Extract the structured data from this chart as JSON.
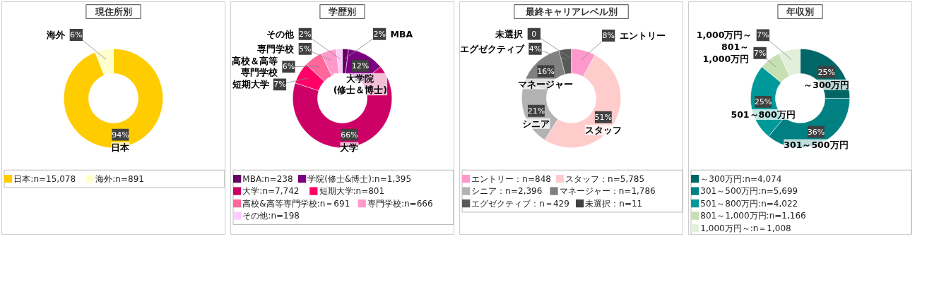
{
  "chart_data": [
    {
      "type": "donut",
      "title": "現住所別",
      "categories": [
        "日本:n=15,078",
        "海外:n=891"
      ],
      "values": [
        94,
        6
      ],
      "colors": [
        "#ffcc00",
        "#ffffcc"
      ],
      "value_labels": [
        "94%",
        "6%"
      ],
      "annotations": [
        "日本",
        "海外"
      ],
      "legend": "bottom"
    },
    {
      "type": "donut",
      "title": "学歴別",
      "categories": [
        "MBA:n=238",
        "学院(修士&博士):n=1,395",
        "大学:n=7,742",
        "短期大学:n=801",
        "高校&高等専門学校:n＝691",
        "専門学校:n=666",
        "その他:n=198"
      ],
      "values": [
        2,
        12,
        66,
        7,
        6,
        5,
        2
      ],
      "colors": [
        "#660066",
        "#7a0080",
        "#cc0066",
        "#ff0066",
        "#ff6699",
        "#ff99cc",
        "#ffccff"
      ],
      "value_labels": [
        "2%",
        "12%",
        "66%",
        "7%",
        "6%",
        "5%",
        "2%"
      ],
      "annotations": [
        "MBA",
        "大学院(修士＆博士)",
        "大学",
        "短期大学",
        "高校＆高等専門学校",
        "専門学校",
        "その他"
      ],
      "legend": "bottom"
    },
    {
      "type": "donut",
      "title": "最終キャリアレベル別",
      "categories": [
        "エントリー：n=848",
        "スタッフ：n=5,785",
        "シニア：n=2,396",
        "マネージャー：n=1,786",
        "エグゼクティブ：n＝429",
        "未選択：n=11"
      ],
      "values": [
        8,
        51,
        21,
        16,
        4,
        0
      ],
      "colors": [
        "#ff99cc",
        "#ffcccc",
        "#b3b3b3",
        "#808080",
        "#595959",
        "#404040"
      ],
      "value_labels": [
        "8%",
        "51%",
        "21%",
        "16%",
        "4%",
        "0"
      ],
      "annotations": [
        "エントリー",
        "スタッフ",
        "シニア",
        "マネージャー",
        "エグゼクティブ",
        "未選択"
      ],
      "legend": "bottom"
    },
    {
      "type": "donut",
      "title": "年収別",
      "categories": [
        "～300万円:n=4,074",
        "301～500万円:n=5,699",
        "501～800万円:n=4,022",
        "801～1,000万円:n=1,166",
        "1,000万円～:n＝1,008"
      ],
      "values": [
        25,
        36,
        25,
        7,
        7
      ],
      "colors": [
        "#006666",
        "#008080",
        "#009999",
        "#c6e0b4",
        "#e2efda"
      ],
      "value_labels": [
        "25%",
        "36%",
        "25%",
        "7%",
        "7%"
      ],
      "annotations": [
        "～300万円",
        "301～500万円",
        "501～800万円",
        "801～1,000万円",
        "1,000万円～"
      ],
      "legend": "bottom"
    }
  ]
}
